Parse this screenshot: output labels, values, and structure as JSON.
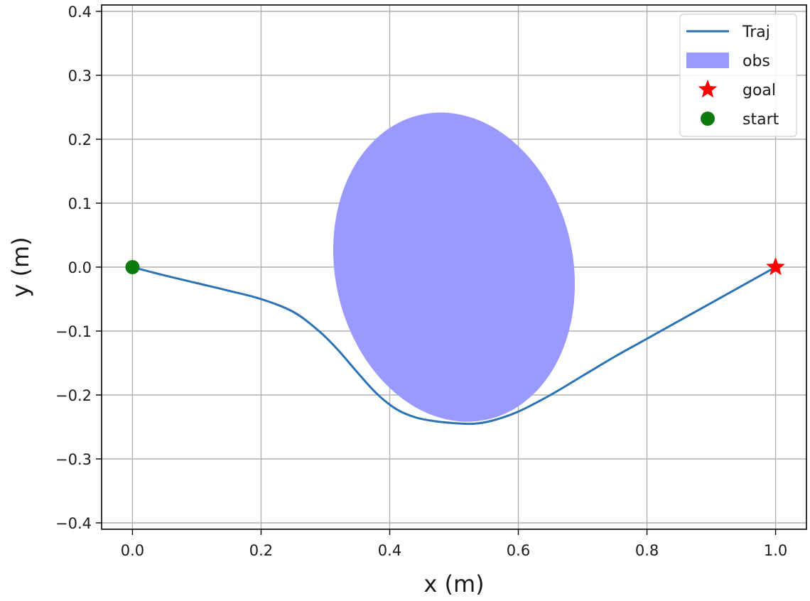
{
  "chart_data": {
    "type": "line",
    "xlabel": "x (m)",
    "ylabel": "y (m)",
    "xlim": [
      -0.048,
      1.048
    ],
    "ylim": [
      -0.41,
      0.41
    ],
    "x_ticks": [
      0.0,
      0.2,
      0.4,
      0.6,
      0.8,
      1.0
    ],
    "x_tick_labels": [
      "0.0",
      "0.2",
      "0.4",
      "0.6",
      "0.8",
      "1.0"
    ],
    "y_ticks": [
      0.4,
      0.3,
      0.2,
      0.1,
      0.0,
      -0.1,
      -0.2,
      -0.3,
      -0.4
    ],
    "y_tick_labels": [
      "0.4",
      "0.3",
      "0.2",
      "0.1",
      "0.0",
      "−0.1",
      "−0.2",
      "−0.3",
      "−0.4"
    ],
    "grid": true,
    "legend_placement": "top-right",
    "series": [
      {
        "name": "Traj",
        "kind": "line",
        "color": "#2c73b4",
        "x": [
          0.0,
          0.05,
          0.1,
          0.15,
          0.2,
          0.25,
          0.29,
          0.32,
          0.35,
          0.38,
          0.41,
          0.44,
          0.47,
          0.5,
          0.53,
          0.56,
          0.6,
          0.65,
          0.7,
          0.75,
          0.8,
          0.85,
          0.9,
          0.95,
          1.0
        ],
        "y": [
          0.0,
          -0.013,
          -0.025,
          -0.037,
          -0.05,
          -0.07,
          -0.1,
          -0.13,
          -0.165,
          -0.198,
          -0.222,
          -0.235,
          -0.241,
          -0.244,
          -0.245,
          -0.24,
          -0.226,
          -0.2,
          -0.17,
          -0.14,
          -0.112,
          -0.084,
          -0.056,
          -0.028,
          0.0
        ]
      },
      {
        "name": "obs",
        "kind": "ellipse",
        "color": "#9999ff",
        "center": [
          0.5,
          0.0
        ],
        "x_range": [
          0.315,
          0.685
        ],
        "y_range": [
          -0.245,
          0.243
        ]
      },
      {
        "name": "goal",
        "kind": "marker",
        "marker": "star",
        "color": "#ff0000",
        "x": [
          1.0
        ],
        "y": [
          0.0
        ]
      },
      {
        "name": "start",
        "kind": "marker",
        "marker": "circle",
        "color": "#0d7a0d",
        "x": [
          0.0
        ],
        "y": [
          0.0
        ]
      }
    ]
  }
}
